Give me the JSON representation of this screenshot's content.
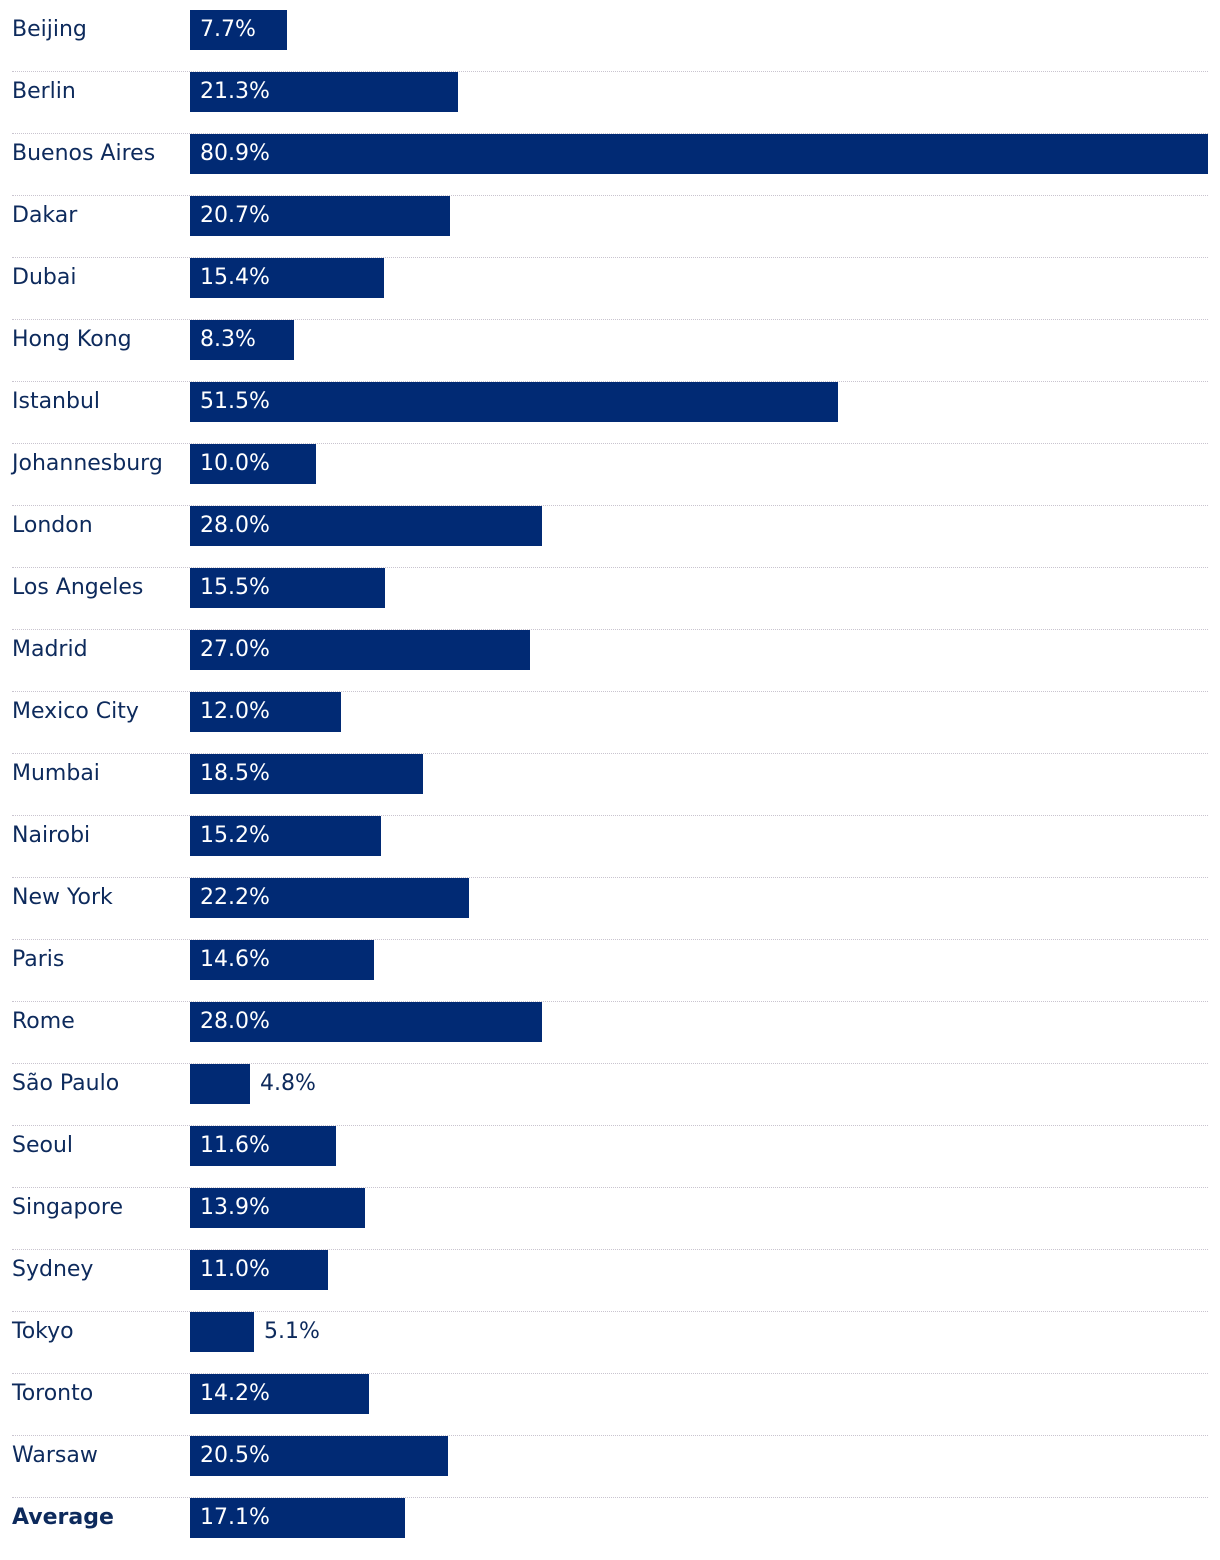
{
  "chart_data": {
    "type": "bar",
    "orientation": "horizontal",
    "categories": [
      "Beijing",
      "Berlin",
      "Buenos Aires",
      "Dakar",
      "Dubai",
      "Hong Kong",
      "Istanbul",
      "Johannesburg",
      "London",
      "Los Angeles",
      "Madrid",
      "Mexico City",
      "Mumbai",
      "Nairobi",
      "New York",
      "Paris",
      "Rome",
      "São Paulo",
      "Seoul",
      "Singapore",
      "Sydney",
      "Tokyo",
      "Toronto",
      "Warsaw",
      "Average"
    ],
    "values": [
      7.7,
      21.3,
      80.9,
      20.7,
      15.4,
      8.3,
      51.5,
      10.0,
      28.0,
      15.5,
      27.0,
      12.0,
      18.5,
      15.2,
      22.2,
      14.6,
      28.0,
      4.8,
      11.6,
      13.9,
      11.0,
      5.1,
      14.2,
      20.5,
      17.1
    ],
    "value_labels": [
      "7.7%",
      "21.3%",
      "80.9%",
      "20.7%",
      "15.4%",
      "8.3%",
      "51.5%",
      "10.0%",
      "28.0%",
      "15.5%",
      "27.0%",
      "12.0%",
      "18.5%",
      "15.2%",
      "22.2%",
      "14.6%",
      "28.0%",
      "4.8%",
      "11.6%",
      "13.9%",
      "11.0%",
      "5.1%",
      "14.2%",
      "20.5%",
      "17.1%"
    ],
    "bold_categories": [
      "Average"
    ],
    "xlim": [
      0,
      80.9
    ],
    "bar_color": "#012a74",
    "label_color": "#0d2a5c",
    "divider_color": "#c9c4cf",
    "grid": false,
    "legend": "none"
  }
}
